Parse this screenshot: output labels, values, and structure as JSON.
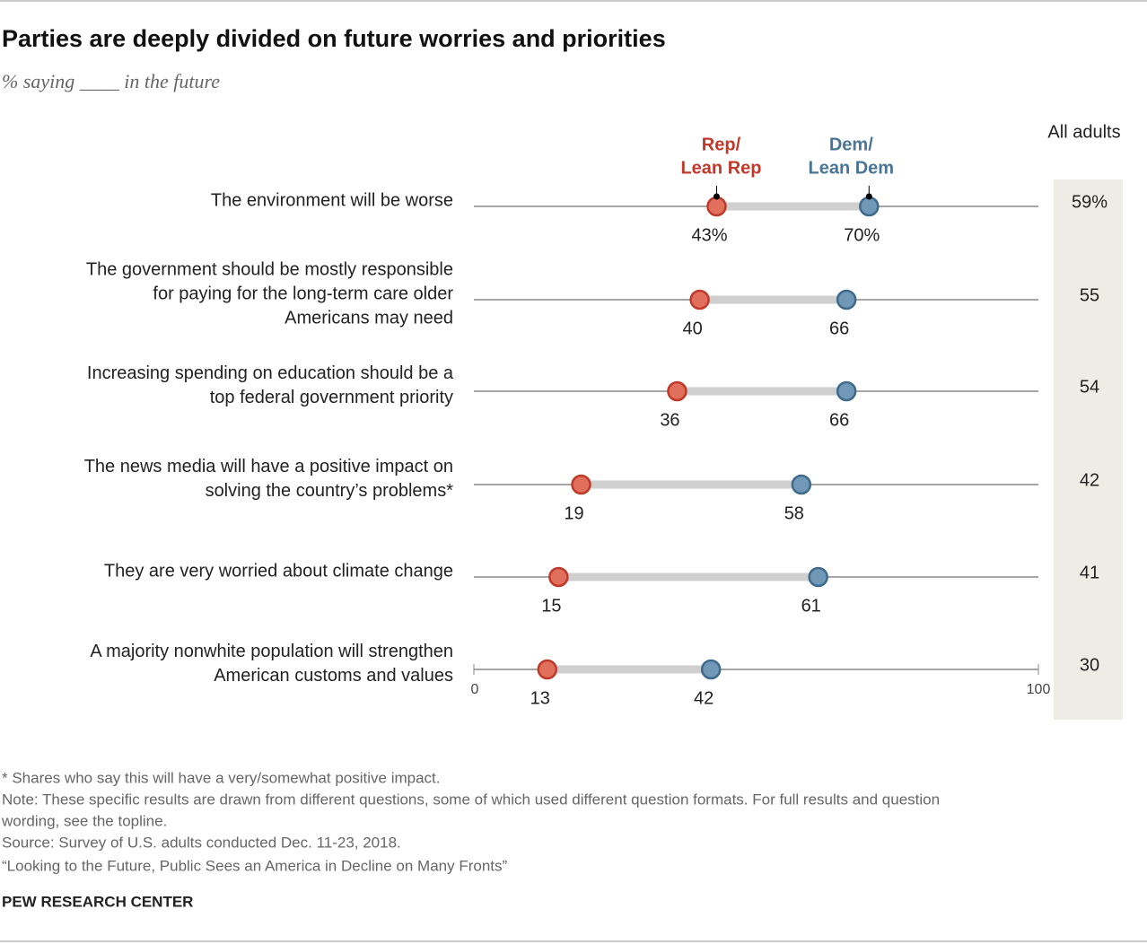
{
  "chart_data": {
    "type": "dot",
    "title": "Parties are deeply divided on future worries and priorities",
    "subtitle": "% saying ____ in the future",
    "categories": [
      [
        "The environment will be worse"
      ],
      [
        "The government should be mostly responsible",
        "for paying for the long-term care older",
        "Americans may need"
      ],
      [
        "Increasing spending on education should be a",
        "top federal government priority"
      ],
      [
        "The news media will have a positive impact on",
        "solving the country’s problems*"
      ],
      [
        "They are very worried about climate change"
      ],
      [
        "A majority nonwhite population will strengthen",
        "American customs and values"
      ]
    ],
    "series": [
      {
        "name": [
          "Rep/",
          "Lean Rep"
        ],
        "color": "#e0705c",
        "edge": "#c0392b",
        "text_color": "#c0392b",
        "values": [
          43,
          40,
          36,
          19,
          15,
          13
        ],
        "value_labels": [
          "43%",
          "40",
          "36",
          "19",
          "15",
          "13"
        ]
      },
      {
        "name": [
          "Dem/",
          "Lean Dem"
        ],
        "color": "#7199b7",
        "edge": "#3e6a8c",
        "text_color": "#4a7596",
        "values": [
          70,
          66,
          66,
          58,
          61,
          42
        ],
        "value_labels": [
          "70%",
          "66",
          "66",
          "58",
          "61",
          "42"
        ]
      }
    ],
    "all_adults": {
      "name": "All adults",
      "values": [
        59,
        55,
        54,
        42,
        41,
        30
      ],
      "value_labels": [
        "59%",
        "55",
        "54",
        "42",
        "41",
        "30"
      ]
    },
    "xlim": [
      0,
      100
    ],
    "xticks": [
      0,
      100
    ],
    "notes": [
      "* Shares who say this will have a very/somewhat positive impact.",
      "Note: These specific results are drawn from different questions, some of which used different question formats. For full results and question",
      "wording, see the topline.",
      "Source: Survey of U.S. adults conducted Dec. 11-23, 2018.",
      "“Looking to the Future, Public Sees an America in Decline on Many Fronts”"
    ],
    "source_org": "PEW RESEARCH CENTER"
  }
}
